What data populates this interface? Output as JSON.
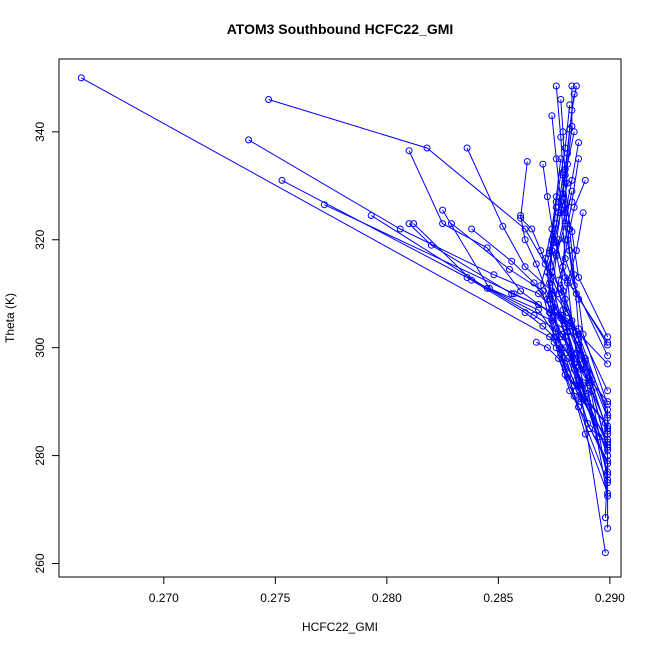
{
  "chart_data": {
    "type": "line",
    "title": "ATOM3 Southbound HCFC22_GMI",
    "xlabel": "HCFC22_GMI",
    "ylabel": "Theta (K)",
    "xlim": [
      0.2653,
      0.2905
    ],
    "ylim": [
      257.5,
      353.5
    ],
    "xticks": [
      "0.270",
      "0.275",
      "0.280",
      "0.285",
      "0.290"
    ],
    "xtick_values": [
      0.27,
      0.275,
      0.28,
      0.285,
      0.29
    ],
    "yticks": [
      "260",
      "280",
      "300",
      "320",
      "340"
    ],
    "ytick_values": [
      260,
      280,
      300,
      320,
      340
    ],
    "grid": false,
    "marker": "open-circle",
    "color": "#0000ff",
    "series": [
      {
        "x": [
          0.2663,
          0.2873,
          0.2881,
          0.2885,
          0.2887,
          0.289,
          0.2899,
          0.2898
        ],
        "y": [
          350.0,
          302.0,
          298.0,
          294.0,
          290.5,
          286.0,
          278.5,
          268.5
        ]
      },
      {
        "x": [
          0.2747,
          0.2818,
          0.2862,
          0.2871,
          0.2879,
          0.2885,
          0.2889,
          0.2899,
          0.2899
        ],
        "y": [
          346.0,
          337.0,
          322.0,
          315.5,
          310.5,
          303.0,
          298.0,
          288.5,
          266.5
        ]
      },
      {
        "x": [
          0.2738,
          0.2806,
          0.2848,
          0.2868,
          0.2879,
          0.2886,
          0.289,
          0.2899
        ],
        "y": [
          338.5,
          322.0,
          313.5,
          310.0,
          305.0,
          300.5,
          295.5,
          284.5
        ]
      },
      {
        "x": [
          0.2753,
          0.2836,
          0.2874,
          0.2881,
          0.2886,
          0.2891,
          0.2899
        ],
        "y": [
          331.0,
          313.0,
          305.0,
          303.0,
          296.5,
          293.0,
          275.5
        ]
      },
      {
        "x": [
          0.2772,
          0.2857,
          0.2877,
          0.2882,
          0.2888,
          0.2899
        ],
        "y": [
          326.5,
          310.0,
          306.0,
          303.0,
          297.0,
          272.5
        ]
      },
      {
        "x": [
          0.2793,
          0.2845,
          0.2866,
          0.2879,
          0.2886,
          0.2895
        ],
        "y": [
          324.5,
          311.0,
          306.0,
          302.5,
          293.0,
          283.5
        ]
      },
      {
        "x": [
          0.281,
          0.2825,
          0.2845,
          0.286,
          0.2873,
          0.2885,
          0.2891,
          0.2899
        ],
        "y": [
          336.5,
          323.0,
          318.5,
          310.5,
          306.5,
          298.0,
          293.5,
          281.0
        ]
      },
      {
        "x": [
          0.281,
          0.282,
          0.2856,
          0.2868,
          0.2882,
          0.2886,
          0.2892,
          0.2899
        ],
        "y": [
          323.0,
          319.0,
          310.0,
          308.0,
          304.5,
          300.0,
          292.0,
          281.5
        ]
      },
      {
        "x": [
          0.2812,
          0.2838,
          0.2862,
          0.287,
          0.288,
          0.2888,
          0.2899
        ],
        "y": [
          323.0,
          312.5,
          306.5,
          304.0,
          300.0,
          293.0,
          276.5
        ]
      },
      {
        "x": [
          0.2825,
          0.2846,
          0.2868,
          0.2876,
          0.2884,
          0.289
        ],
        "y": [
          325.5,
          311.0,
          307.0,
          302.0,
          297.0,
          291.5
        ]
      },
      {
        "x": [
          0.2829,
          0.2855,
          0.287,
          0.288,
          0.2883,
          0.2899
        ],
        "y": [
          323.0,
          314.5,
          310.5,
          305.0,
          298.0,
          280.0
        ]
      },
      {
        "x": [
          0.2836,
          0.2852,
          0.2862,
          0.2874,
          0.2881,
          0.2886,
          0.2899
        ],
        "y": [
          337.0,
          322.5,
          315.0,
          310.5,
          306.5,
          301.5,
          284.0
        ]
      },
      {
        "x": [
          0.2838,
          0.2856,
          0.2866,
          0.2874,
          0.2878,
          0.2885,
          0.2899
        ],
        "y": [
          322.0,
          316.0,
          312.0,
          307.0,
          302.0,
          299.0,
          285.0
        ]
      },
      {
        "x": [
          0.2863,
          0.286,
          0.2865,
          0.2869,
          0.2877,
          0.2886,
          0.2899
        ],
        "y": [
          334.5,
          324.0,
          322.0,
          318.0,
          310.0,
          302.5,
          287.5
        ]
      },
      {
        "x": [
          0.286,
          0.2862,
          0.2867,
          0.2873,
          0.288,
          0.2886,
          0.2892
        ],
        "y": [
          324.5,
          320.0,
          315.5,
          309.0,
          304.5,
          300.5,
          294.0
        ]
      },
      {
        "x": [
          0.287,
          0.2872,
          0.2875,
          0.2881,
          0.2883,
          0.2885,
          0.2888
        ],
        "y": [
          334.0,
          328.0,
          320.0,
          312.5,
          305.0,
          299.0,
          293.5
        ]
      },
      {
        "x": [
          0.2874,
          0.2876,
          0.2878,
          0.288,
          0.2886,
          0.2888,
          0.2899
        ],
        "y": [
          343.0,
          335.0,
          327.0,
          316.5,
          309.0,
          302.5,
          289.5
        ]
      },
      {
        "x": [
          0.2876,
          0.2878,
          0.2879,
          0.288,
          0.2884,
          0.2899
        ],
        "y": [
          348.5,
          339.0,
          332.5,
          322.5,
          311.5,
          298.5
        ]
      },
      {
        "x": [
          0.2878,
          0.2879,
          0.288,
          0.2882,
          0.2884,
          0.2886,
          0.2899
        ],
        "y": [
          346.0,
          340.0,
          330.5,
          322.0,
          313.5,
          303.5,
          292.0
        ]
      },
      {
        "x": [
          0.2883,
          0.2883,
          0.2881,
          0.288,
          0.2882,
          0.2885,
          0.2899
        ],
        "y": [
          348.5,
          341.0,
          334.0,
          326.5,
          318.0,
          310.0,
          300.5
        ]
      },
      {
        "x": [
          0.2885,
          0.2883,
          0.2881,
          0.2879,
          0.2883,
          0.2886,
          0.2899
        ],
        "y": [
          348.5,
          344.0,
          336.0,
          328.5,
          321.5,
          313.0,
          302.0
        ]
      },
      {
        "x": [
          0.2884,
          0.2882,
          0.288,
          0.2878,
          0.2876,
          0.288,
          0.2899
        ],
        "y": [
          347.0,
          340.5,
          333.0,
          325.5,
          319.5,
          313.0,
          301.0
        ]
      },
      {
        "x": [
          0.2889,
          0.2884,
          0.2881,
          0.2879,
          0.2877,
          0.2875,
          0.2899
        ],
        "y": [
          331.0,
          326.0,
          320.0,
          315.0,
          312.5,
          307.5,
          297.0
        ]
      },
      {
        "x": [
          0.2881,
          0.2878,
          0.2875,
          0.2872,
          0.2874,
          0.288,
          0.2886,
          0.2899
        ],
        "y": [
          330.5,
          325.0,
          319.5,
          314.0,
          305.5,
          296.5,
          289.0,
          275.0
        ]
      },
      {
        "x": [
          0.2884,
          0.288,
          0.2877,
          0.2874,
          0.2873,
          0.2879,
          0.2899
        ],
        "y": [
          340.0,
          332.0,
          325.0,
          318.0,
          312.0,
          298.0,
          281.0
        ]
      },
      {
        "x": [
          0.2878,
          0.2876,
          0.2874,
          0.2871,
          0.2876,
          0.2885,
          0.2899
        ],
        "y": [
          335.0,
          328.0,
          322.0,
          316.5,
          303.5,
          292.0,
          283.0
        ]
      },
      {
        "x": [
          0.2882,
          0.288,
          0.2876,
          0.2873,
          0.2879,
          0.2886,
          0.2898
        ],
        "y": [
          345.0,
          337.0,
          327.0,
          318.0,
          307.0,
          294.0,
          262.0
        ]
      },
      {
        "x": [
          0.2879,
          0.2876,
          0.2873,
          0.2869,
          0.2875,
          0.2881,
          0.2899
        ],
        "y": [
          332.0,
          323.0,
          317.5,
          311.5,
          302.0,
          294.5,
          285.5
        ]
      },
      {
        "x": [
          0.2886,
          0.2883,
          0.288,
          0.2876,
          0.288,
          0.2889,
          0.2899
        ],
        "y": [
          338.0,
          331.0,
          325.0,
          317.5,
          309.0,
          297.5,
          287.0
        ]
      },
      {
        "x": [
          0.2877,
          0.2874,
          0.2872,
          0.2876,
          0.2882,
          0.2886,
          0.2899
        ],
        "y": [
          320.0,
          314.0,
          309.0,
          300.0,
          292.0,
          289.0,
          279.0
        ]
      },
      {
        "x": [
          0.2886,
          0.2883,
          0.288,
          0.2878,
          0.2883,
          0.2887,
          0.2899
        ],
        "y": [
          335.0,
          327.0,
          320.0,
          311.0,
          304.0,
          296.0,
          290.0
        ]
      },
      {
        "x": [
          0.2876,
          0.2874,
          0.2873,
          0.2878,
          0.2884,
          0.289,
          0.2899
        ],
        "y": [
          326.0,
          320.0,
          313.5,
          305.5,
          296.0,
          290.0,
          282.0
        ]
      },
      {
        "x": [
          0.2888,
          0.2885,
          0.2881,
          0.2879,
          0.2884,
          0.2889,
          0.2898
        ],
        "y": [
          325.0,
          318.0,
          312.0,
          306.0,
          297.0,
          291.0,
          286.0
        ]
      },
      {
        "x": [
          0.2883,
          0.288,
          0.2876,
          0.2874,
          0.288,
          0.2887,
          0.2899
        ],
        "y": [
          329.0,
          323.0,
          317.0,
          310.0,
          302.0,
          293.0,
          277.0
        ]
      },
      {
        "x": [
          0.2867,
          0.2872,
          0.2877,
          0.288,
          0.2884,
          0.2889,
          0.2899
        ],
        "y": [
          301.0,
          300.0,
          298.0,
          295.0,
          291.0,
          284.0,
          273.0
        ]
      },
      {
        "x": [
          0.2875,
          0.2878,
          0.288,
          0.2884,
          0.2887,
          0.2891,
          0.2899
        ],
        "y": [
          301.0,
          299.0,
          296.0,
          293.0,
          290.0,
          285.0,
          282.5
        ]
      }
    ]
  }
}
